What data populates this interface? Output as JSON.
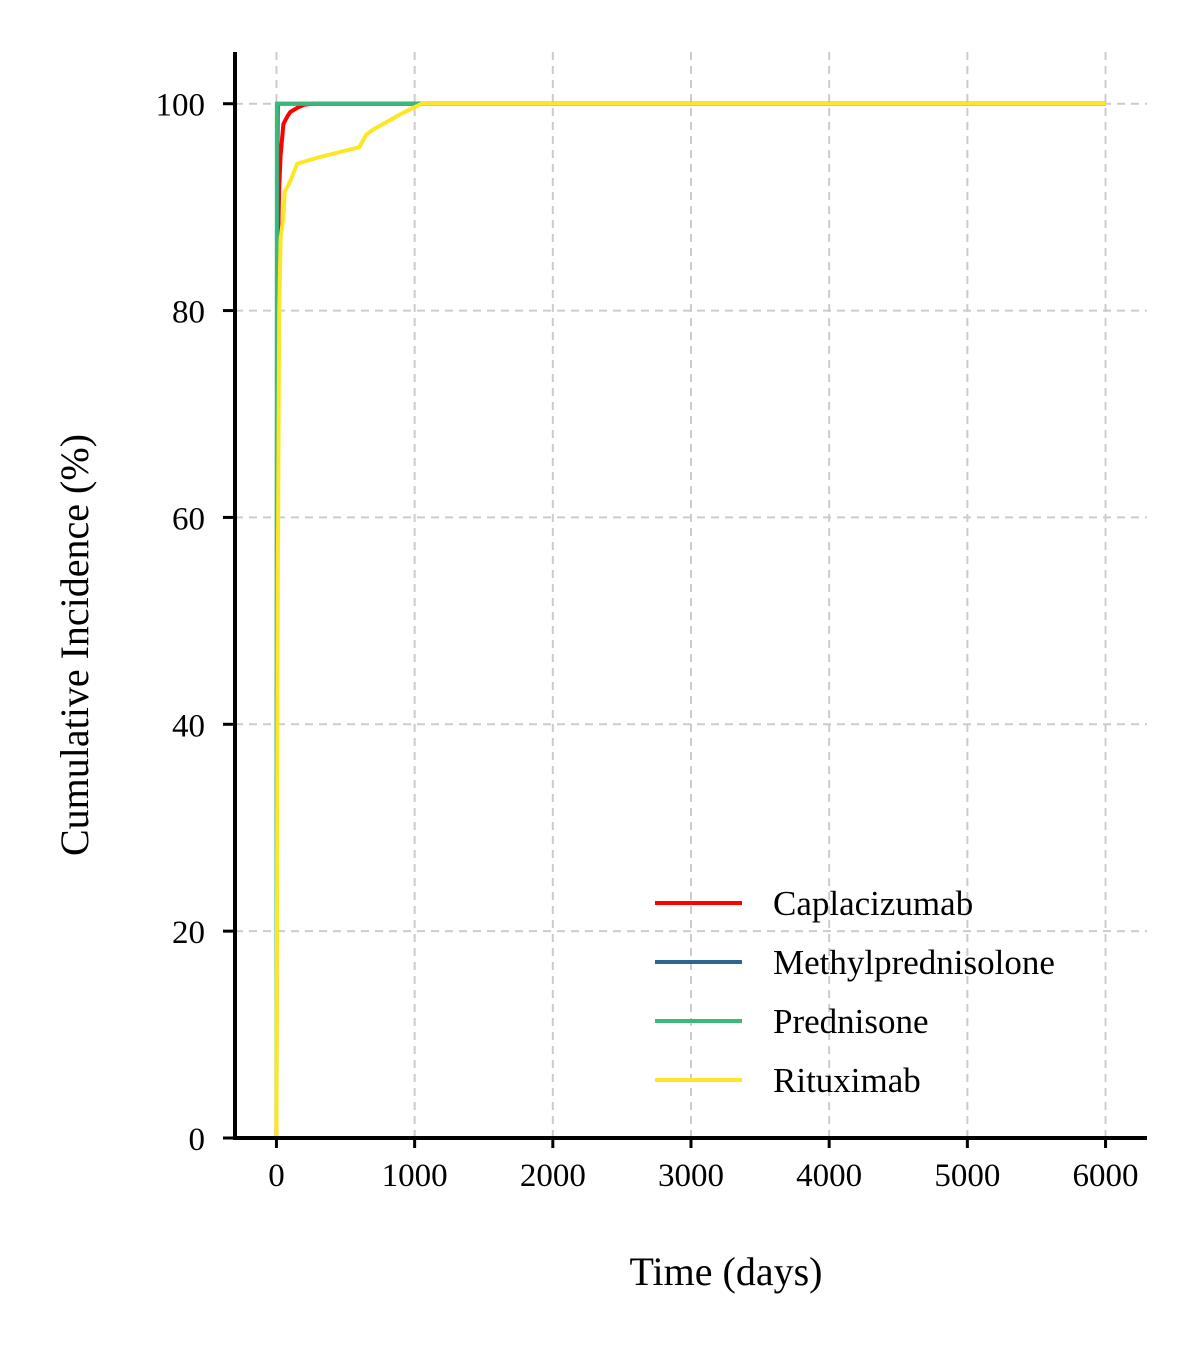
{
  "chart_data": {
    "type": "line",
    "title": "",
    "xlabel": "Time (days)",
    "ylabel": "Cumulative Incidence (%)",
    "xlim": [
      -300,
      6300
    ],
    "ylim": [
      0,
      105
    ],
    "xticks": [
      0,
      1000,
      2000,
      3000,
      4000,
      5000,
      6000
    ],
    "yticks": [
      0,
      20,
      40,
      60,
      80,
      100
    ],
    "xtick_labels": [
      "0",
      "1000",
      "2000",
      "3000",
      "4000",
      "5000",
      "6000"
    ],
    "ytick_labels": [
      "0",
      "20",
      "40",
      "60",
      "80",
      "100"
    ],
    "grid": true,
    "legend_position": "lower-right",
    "series": [
      {
        "name": "Caplacizumab",
        "color": "#ff0000",
        "x": [
          0,
          5,
          10,
          20,
          30,
          40,
          50,
          60,
          80,
          100,
          150,
          200,
          260,
          6000
        ],
        "y": [
          0,
          60,
          85,
          92,
          95,
          96.5,
          98,
          98.3,
          98.8,
          99.2,
          99.6,
          99.9,
          100,
          100
        ]
      },
      {
        "name": "Methylprednisolone",
        "color": "#2f6690",
        "x": [
          0,
          5,
          10,
          6000
        ],
        "y": [
          0,
          90,
          100,
          100
        ]
      },
      {
        "name": "Prednisone",
        "color": "#3cb87c",
        "x": [
          0,
          3,
          6000
        ],
        "y": [
          0,
          100,
          100
        ]
      },
      {
        "name": "Rituximab",
        "color": "#fde725",
        "x": [
          0,
          10,
          20,
          30,
          40,
          50,
          60,
          100,
          150,
          300,
          600,
          650,
          700,
          900,
          1050,
          6000
        ],
        "y": [
          0,
          55,
          80,
          87,
          88,
          89,
          91.5,
          92.5,
          94.2,
          94.8,
          95.8,
          97,
          97.5,
          99,
          100,
          100
        ]
      }
    ]
  }
}
